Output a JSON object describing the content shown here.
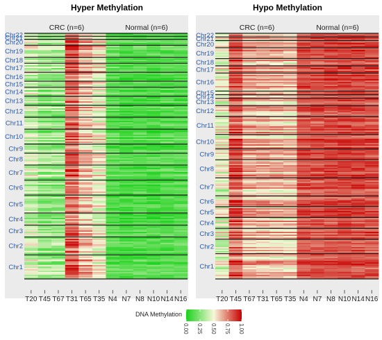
{
  "chart_data": [
    {
      "type": "heatmap",
      "title": "Hyper Methylation",
      "groups": [
        {
          "label": "CRC (n=6)",
          "samples": [
            "T20",
            "T45",
            "T67",
            "T31",
            "T65",
            "T35"
          ]
        },
        {
          "label": "Normal (n=6)",
          "samples": [
            "N4",
            "N7",
            "N8",
            "N10",
            "N14",
            "N16"
          ]
        }
      ],
      "x": [
        "T20",
        "T45",
        "T67",
        "T31",
        "T65",
        "T35",
        "N4",
        "N7",
        "N8",
        "N10",
        "N14",
        "N16"
      ],
      "chromosomes_top_to_bottom": [
        "Chr22",
        "Chr21",
        "Chr20",
        "Chr19",
        "Chr18",
        "Chr17",
        "Chr16",
        "Chr15",
        "Chr14",
        "Chr13",
        "Chr12",
        "Chr11",
        "Chr10",
        "Chr9",
        "Chr8",
        "Chr7",
        "Chr6",
        "Chr5",
        "Chr4",
        "Chr3",
        "Chr2",
        "Chr1"
      ],
      "chromosome_share": [
        1,
        1,
        2,
        4,
        2,
        3,
        3,
        2,
        3,
        3,
        4,
        4,
        5,
        3,
        4,
        5,
        5,
        6,
        4,
        4,
        6,
        8
      ],
      "mean_methylation_by_sample": [
        0.4,
        0.3,
        0.3,
        0.8,
        0.62,
        0.5,
        0.15,
        0.12,
        0.14,
        0.12,
        0.14,
        0.15
      ]
    },
    {
      "type": "heatmap",
      "title": "Hypo Methylation",
      "groups": [
        {
          "label": "CRC (n=6)",
          "samples": [
            "T20",
            "T45",
            "T67",
            "T31",
            "T65",
            "T35"
          ]
        },
        {
          "label": "Normal (n=6)",
          "samples": [
            "N4",
            "N7",
            "N8",
            "N10",
            "N14",
            "N16"
          ]
        }
      ],
      "x": [
        "T20",
        "T45",
        "T67",
        "T31",
        "T65",
        "T35",
        "N4",
        "N7",
        "N8",
        "N10",
        "N14",
        "N16"
      ],
      "chromosomes_top_to_bottom": [
        "Chr22",
        "Chr21",
        "Chr20",
        "Chr19",
        "Chr18",
        "Chr17",
        "Chr16",
        "Chr15",
        "Chr14",
        "Chr13",
        "Chr12",
        "Chr11",
        "Chr10",
        "Chr9",
        "Chr8",
        "Chr7",
        "Chr6",
        "Chr5",
        "Chr4",
        "Chr3",
        "Chr2",
        "Chr1"
      ],
      "chromosome_share": [
        1,
        1,
        2,
        3,
        2,
        2,
        5,
        1,
        1,
        2,
        3,
        5,
        4,
        3,
        5,
        5,
        3,
        3,
        3,
        3,
        4,
        7
      ],
      "mean_methylation_by_sample": [
        0.45,
        0.8,
        0.62,
        0.62,
        0.6,
        0.58,
        0.82,
        0.83,
        0.84,
        0.85,
        0.84,
        0.83
      ]
    }
  ],
  "legend": {
    "title": "DNA Methylation",
    "ticks": [
      "0.00",
      "0.25",
      "0.50",
      "0.75",
      "1.00"
    ],
    "range": [
      0,
      1
    ],
    "colors": [
      "#1bd11b",
      "#f7f7d8",
      "#c80000"
    ]
  },
  "colors": {
    "panel_background": "#ebebeb",
    "chromosome_label": "#2a5aa8",
    "separator": "#1a1a1a"
  }
}
